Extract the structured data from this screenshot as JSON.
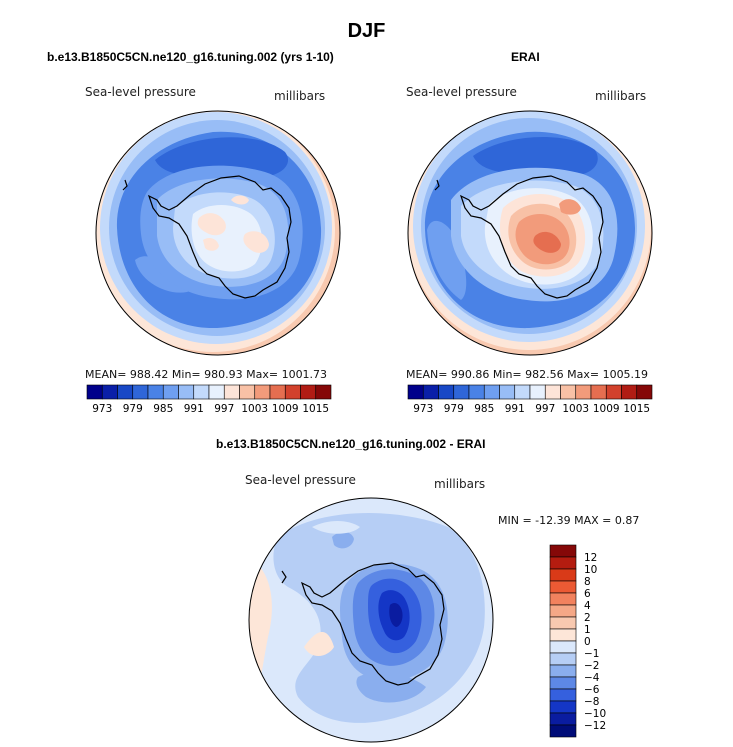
{
  "figure_title": "DJF",
  "panels": [
    {
      "id": "model",
      "title": "b.e13.B1850C5CN.ne120_g16.tuning.002 (yrs 1-10)",
      "variable": "Sea-level pressure",
      "units": "millibars",
      "stats": "MEAN= 988.42   Min= 980.93   Max= 1001.73"
    },
    {
      "id": "erai",
      "title": "ERAI",
      "variable": "Sea-level pressure",
      "units": "millibars",
      "stats": "MEAN= 990.86   Min= 982.56   Max= 1005.19"
    },
    {
      "id": "diff",
      "title": "b.e13.B1850C5CN.ne120_g16.tuning.002 - ERAI",
      "variable": "Sea-level pressure",
      "units": "millibars",
      "stats": "MIN = -12.39 MAX =   0.87"
    }
  ],
  "colorbar_abs": {
    "labels": [
      "973",
      "979",
      "985",
      "991",
      "997",
      "1003",
      "1009",
      "1015"
    ],
    "colors": [
      "#00008b",
      "#0a1fa8",
      "#1848c6",
      "#2f66d8",
      "#4a82e6",
      "#6f9ff0",
      "#98bdf6",
      "#c3dafb",
      "#e8f1fd",
      "#fde4d8",
      "#f8c1a6",
      "#f29b7b",
      "#e56e50",
      "#d2412c",
      "#b11c14",
      "#850808"
    ]
  },
  "colorbar_diff": {
    "labels": [
      "12",
      "10",
      "8",
      "6",
      "4",
      "2",
      "1",
      "0",
      "−1",
      "−2",
      "−4",
      "−6",
      "−8",
      "−10",
      "−12"
    ],
    "colors": [
      "#850808",
      "#b41c10",
      "#d93a18",
      "#ec5a34",
      "#f2825e",
      "#f5a887",
      "#f8c9b0",
      "#fde6d8",
      "#dbe8fb",
      "#b6cef5",
      "#8aaeee",
      "#5d88e6",
      "#3560de",
      "#1436c6",
      "#0a1ca0",
      "#000c78"
    ]
  }
}
